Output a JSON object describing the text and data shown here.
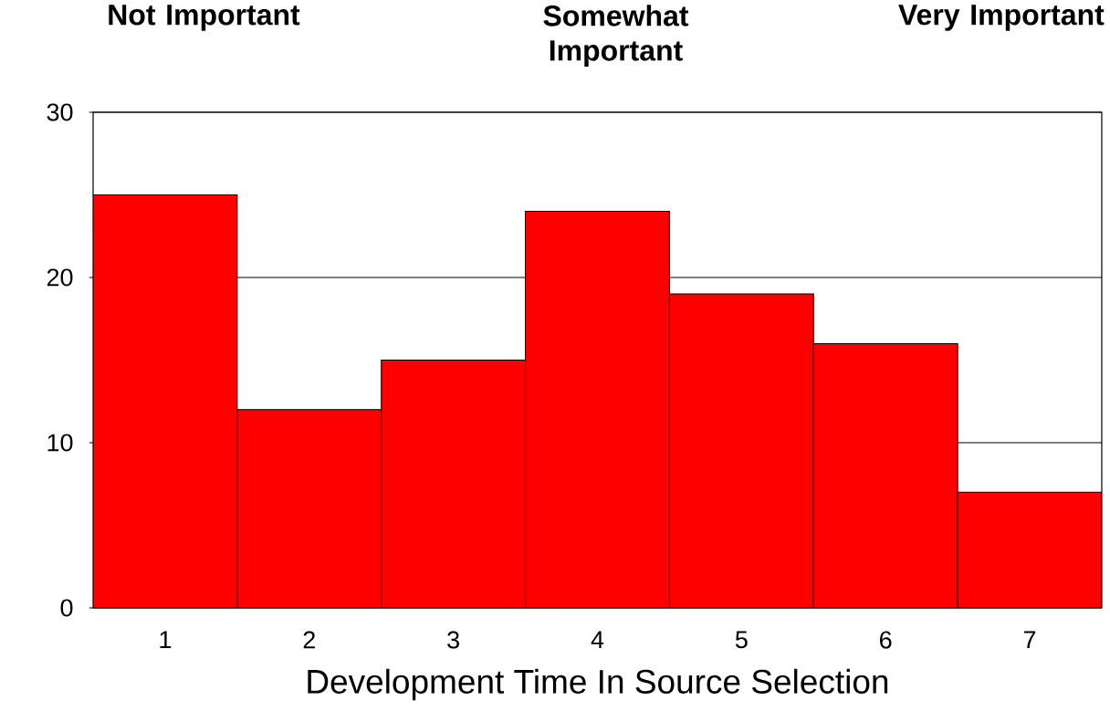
{
  "chart_data": {
    "type": "bar",
    "xlabel": "Development  Time  In  Source  Selection",
    "categories": [
      "1",
      "2",
      "3",
      "4",
      "5",
      "6",
      "7"
    ],
    "values": [
      25,
      12,
      15,
      24,
      19,
      16,
      7
    ],
    "color": "#ff0000",
    "ylim": [
      0,
      30
    ],
    "yticks": [
      0,
      10,
      20,
      30
    ],
    "grid": "y",
    "annotations": [
      "Not Important",
      "Somewhat Important",
      "Very Important"
    ]
  }
}
